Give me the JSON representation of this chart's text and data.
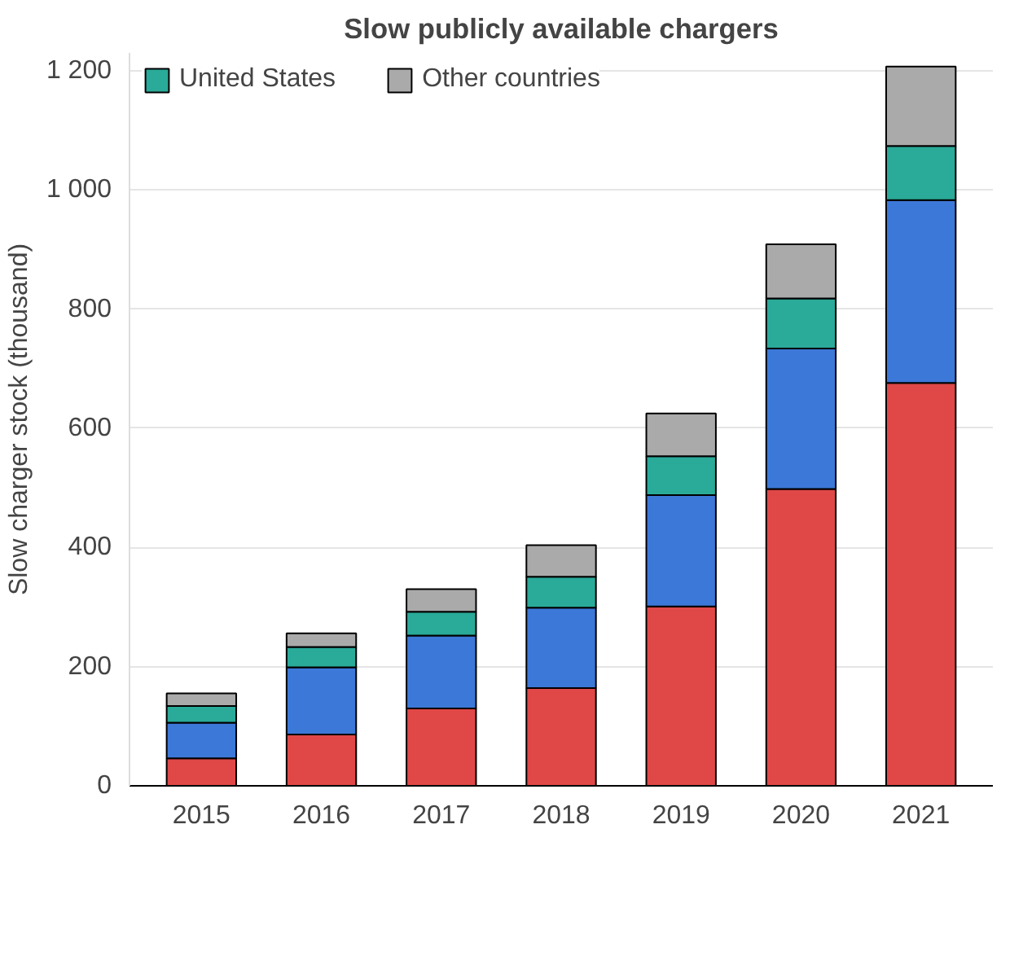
{
  "chart_data": {
    "type": "bar",
    "stacked": true,
    "title": "Slow publicly available chargers",
    "ylabel": "Slow charger stock (thousand)",
    "categories": [
      "2015",
      "2016",
      "2017",
      "2018",
      "2019",
      "2020",
      "2021"
    ],
    "series": [
      {
        "color": "#e04848",
        "values": [
          46,
          86,
          130,
          164,
          301,
          498,
          676
        ]
      },
      {
        "color": "#3c78d8",
        "values": [
          60,
          113,
          122,
          135,
          187,
          236,
          307
        ]
      },
      {
        "name": "United States",
        "color": "#2aaa99",
        "values": [
          28,
          34,
          40,
          52,
          65,
          84,
          91
        ]
      },
      {
        "name": "Other countries",
        "color": "#aaaaaa",
        "values": [
          21,
          23,
          38,
          53,
          72,
          91,
          133
        ]
      }
    ],
    "ylim": [
      0,
      1230
    ],
    "yticks": [
      0,
      200,
      400,
      600,
      800,
      {
        "value": 1000,
        "label": "1 000"
      },
      {
        "value": 1200,
        "label": "1 200"
      }
    ],
    "grid": "y",
    "legend": "top left"
  }
}
